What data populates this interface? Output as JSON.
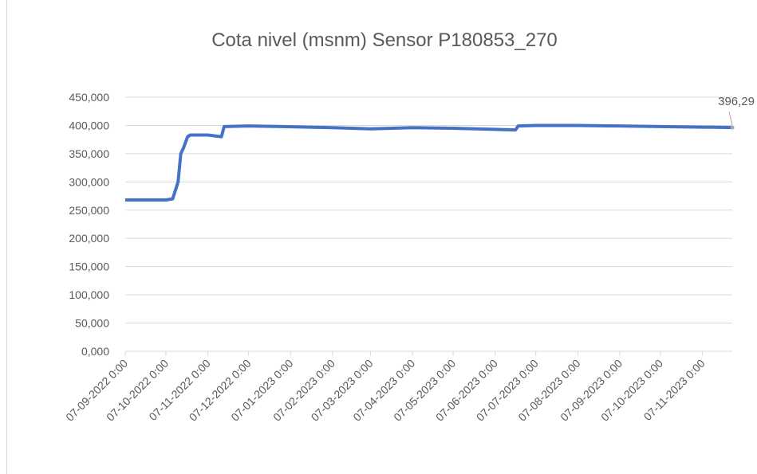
{
  "chart_data": {
    "type": "line",
    "title": "Cota nivel (msnm) Sensor P180853_270",
    "x": [
      "07-09-2022 0:00",
      "07-10-2022 0:00",
      "12-10-2022 0:00",
      "16-10-2022 0:00",
      "18-10-2022 0:00",
      "20-10-2022 0:00",
      "23-10-2022 0:00",
      "25-10-2022 0:00",
      "07-11-2022 0:00",
      "17-11-2022 0:00",
      "19-11-2022 0:00",
      "07-12-2022 0:00",
      "01-01-2023 0:00",
      "07-02-2023 0:00",
      "07-03-2023 0:00",
      "07-04-2023 0:00",
      "07-05-2023 0:00",
      "07-06-2023 0:00",
      "22-06-2023 0:00",
      "24-06-2023 0:00",
      "07-07-2023 0:00",
      "07-08-2023 0:00",
      "07-09-2023 0:00",
      "07-10-2023 0:00",
      "07-11-2023 0:00",
      "29-11-2023 0:00"
    ],
    "series": [
      {
        "name": "Cota nivel",
        "color": "#4472c4",
        "values": [
          268,
          268,
          270,
          300,
          350,
          360,
          380,
          383,
          383,
          380,
          398,
          399,
          398,
          396,
          394,
          396,
          395,
          393,
          392,
          399,
          400,
          400,
          399,
          398,
          397,
          396.29
        ],
        "value_labels": [
          null,
          null,
          null,
          null,
          null,
          null,
          null,
          null,
          null,
          null,
          null,
          null,
          null,
          null,
          null,
          null,
          null,
          null,
          null,
          null,
          null,
          null,
          null,
          null,
          null,
          "396,29"
        ]
      }
    ],
    "xlim": [
      "07-09-2022 0:00",
      "29-11-2023 0:00"
    ],
    "xticks": [
      "07-09-2022 0:00",
      "07-10-2022 0:00",
      "07-11-2022 0:00",
      "07-12-2022 0:00",
      "07-01-2023 0:00",
      "07-02-2023 0:00",
      "07-03-2023 0:00",
      "07-04-2023 0:00",
      "07-05-2023 0:00",
      "07-06-2023 0:00",
      "07-07-2023 0:00",
      "07-08-2023 0:00",
      "07-09-2023 0:00",
      "07-10-2023 0:00",
      "07-11-2023 0:00"
    ],
    "ylim": [
      0,
      450
    ],
    "yticks": [
      {
        "value": 0,
        "label": "0,000"
      },
      {
        "value": 50,
        "label": "50,000"
      },
      {
        "value": 100,
        "label": "100,000"
      },
      {
        "value": 150,
        "label": "150,000"
      },
      {
        "value": 200,
        "label": "200,000"
      },
      {
        "value": 250,
        "label": "250,000"
      },
      {
        "value": 300,
        "label": "300,000"
      },
      {
        "value": 350,
        "label": "350,000"
      },
      {
        "value": 400,
        "label": "400,000"
      },
      {
        "value": 450,
        "label": "450,000"
      }
    ],
    "grid": true
  }
}
